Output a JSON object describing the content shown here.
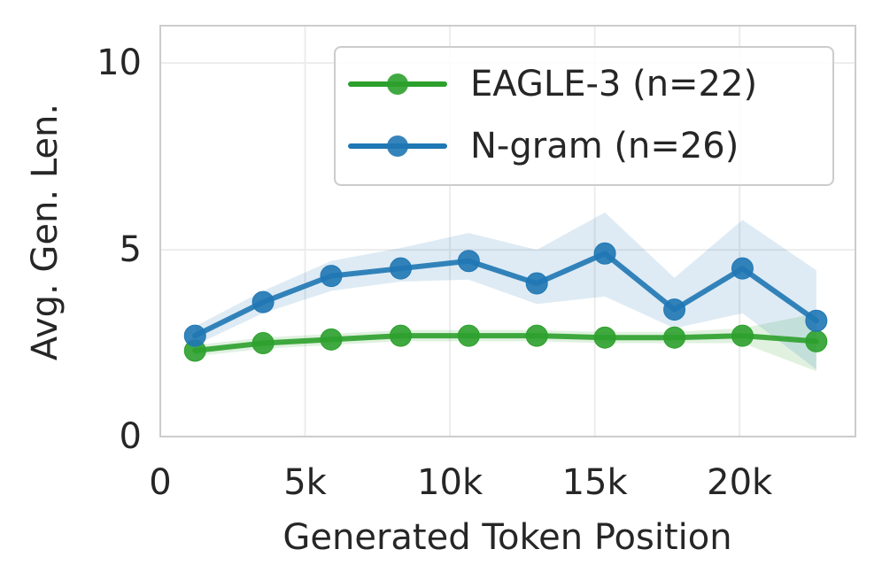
{
  "chart_data": {
    "type": "line",
    "title": "",
    "xlabel": "Generated Token Position",
    "ylabel": "Avg. Gen. Len.",
    "xlim": [
      0,
      24000
    ],
    "ylim": [
      0,
      11
    ],
    "x_ticks": [
      0,
      5000,
      10000,
      15000,
      20000
    ],
    "x_tick_labels": [
      "0",
      "5k",
      "10k",
      "15k",
      "20k"
    ],
    "y_ticks": [
      0,
      5,
      10
    ],
    "y_tick_labels": [
      "0",
      "5",
      "10"
    ],
    "grid": true,
    "legend_position": "top-right",
    "series": [
      {
        "name": "EAGLE-3 (n=22)",
        "color": "#2ca02c",
        "x": [
          1200,
          3550,
          5900,
          8300,
          10650,
          13000,
          15350,
          17750,
          20100,
          22650
        ],
        "y": [
          2.3,
          2.5,
          2.6,
          2.7,
          2.7,
          2.7,
          2.65,
          2.65,
          2.7,
          2.55
        ],
        "band_low": [
          2.15,
          2.35,
          2.45,
          2.55,
          2.55,
          2.55,
          2.5,
          2.5,
          2.5,
          1.75
        ],
        "band_high": [
          2.45,
          2.65,
          2.75,
          2.85,
          2.85,
          2.85,
          2.8,
          2.8,
          2.9,
          3.3
        ]
      },
      {
        "name": "N-gram (n=26)",
        "color": "#1f77b4",
        "x": [
          1200,
          3550,
          5900,
          8300,
          10650,
          13000,
          15350,
          17750,
          20100,
          22650
        ],
        "y": [
          2.7,
          3.6,
          4.3,
          4.5,
          4.7,
          4.1,
          4.9,
          3.4,
          4.5,
          3.1
        ],
        "band_low": [
          2.45,
          3.3,
          3.9,
          4.15,
          4.2,
          3.55,
          3.75,
          2.9,
          3.3,
          1.8
        ],
        "band_high": [
          2.95,
          3.9,
          4.7,
          5.05,
          5.45,
          5.0,
          6.0,
          4.25,
          5.8,
          4.45
        ]
      }
    ]
  }
}
